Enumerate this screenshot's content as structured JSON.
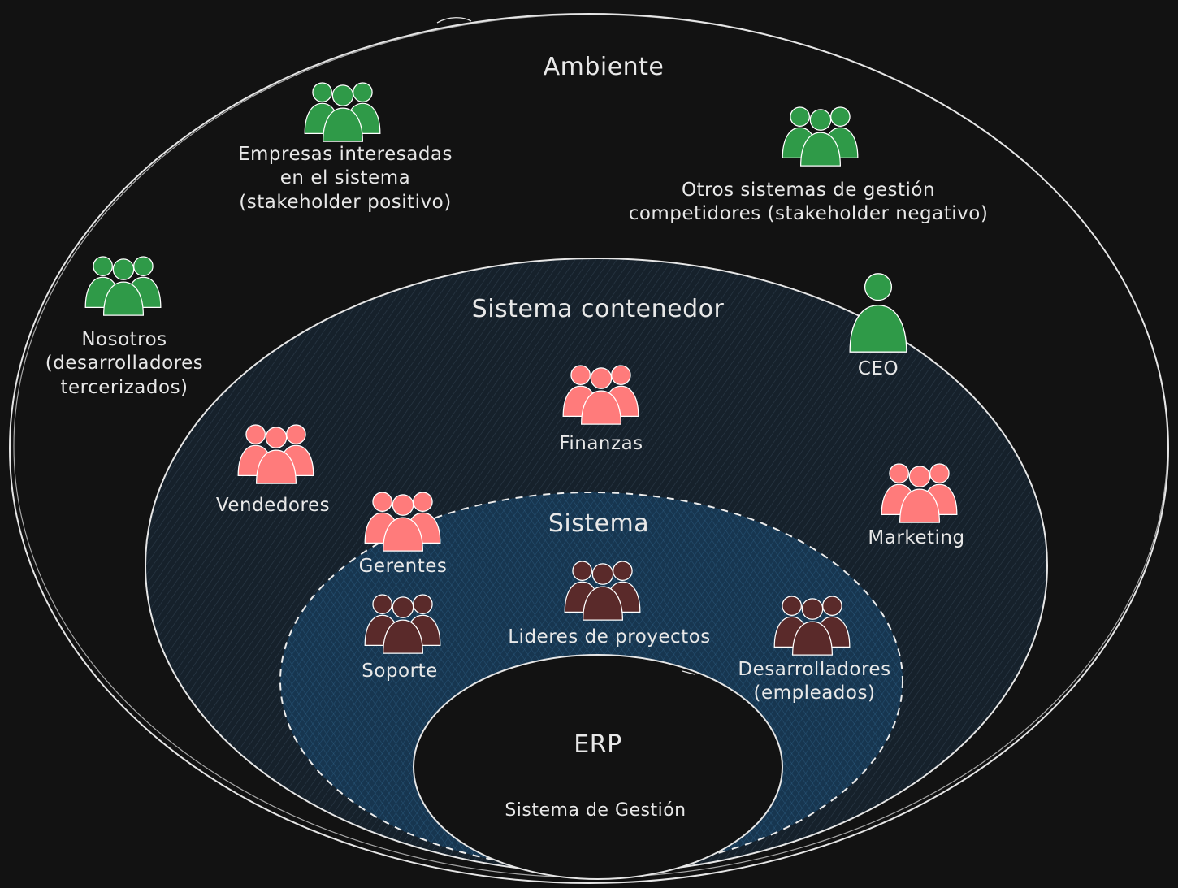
{
  "diagram": {
    "rings": {
      "ambiente": "Ambiente",
      "sistema_contenedor": "Sistema contenedor",
      "sistema": "Sistema",
      "erp": "ERP",
      "erp_subtitle": "Sistema de Gestión"
    },
    "stakeholders": {
      "empresas": [
        "Empresas interesadas",
        "en el sistema",
        "(stakeholder positivo)"
      ],
      "competidores": [
        "Otros sistemas de gestión",
        "competidores (stakeholder negativo)"
      ],
      "nosotros": [
        "Nosotros",
        "(desarrolladores",
        "tercerizados)"
      ],
      "ceo": "CEO",
      "finanzas": "Finanzas",
      "vendedores": "Vendedores",
      "marketing": "Marketing",
      "gerentes": "Gerentes",
      "soporte": "Soporte",
      "lideres": "Lideres de proyectos",
      "desarrolladores": [
        "Desarrolladores",
        "(empleados)"
      ]
    },
    "colors": {
      "background": "#121212",
      "stroke": "#e6e6e6",
      "environment_green": "#2f9a48",
      "container_pink": "#ff7b7b",
      "system_brown": "#5a2a2a",
      "container_fill": "#16212b",
      "system_fill": "#173650"
    },
    "icons": {
      "group": "people-group-icon",
      "single": "person-icon"
    }
  }
}
